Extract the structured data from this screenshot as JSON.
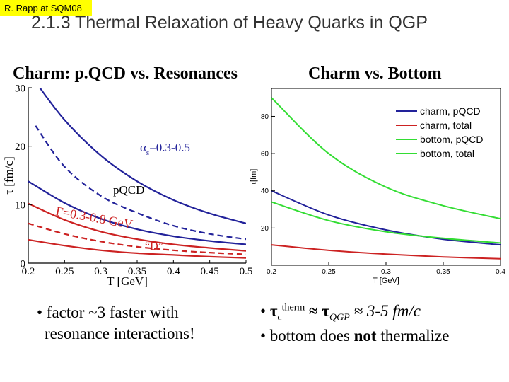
{
  "tag": "R. Rapp at SQM08",
  "slide_title": "2.1.3 Thermal Relaxation of Heavy Quarks in QGP",
  "left_panel": {
    "title": "Charm: p.QCD vs. Resonances",
    "annotations": {
      "alpha": "α",
      "alpha_sub": "s",
      "alpha_range": "=0.3-0.5",
      "pqcd": "pQCD",
      "gamma": "Γ=0.3-0.8 GeV",
      "d_label": "“D”"
    }
  },
  "right_panel": {
    "title": "Charm vs. Bottom"
  },
  "bullets": {
    "left_line1": "• factor ~3 faster with",
    "left_line2": "resonance interactions!",
    "right1_prefix": "• ",
    "right1_tau": "τ",
    "right1_sub": "c",
    "right1_sup": "therm",
    "right1_mid": " ≈ τ",
    "right1_qgp": "QGP",
    "right1_tail": " ≈ 3-5 fm/c",
    "right2_prefix": "• bottom does ",
    "right2_bold": "not",
    "right2_tail": " thermalize"
  },
  "chart_data": [
    {
      "type": "line",
      "xlabel": "T [GeV]",
      "ylabel": "τ [fm/c]",
      "xlim": [
        0.2,
        0.5
      ],
      "ylim": [
        0,
        30
      ],
      "xticks": [
        "0.2",
        "0.25",
        "0.3",
        "0.35",
        "0.4",
        "0.45",
        "0.5"
      ],
      "yticks": [
        "0",
        "10",
        "20",
        "30"
      ],
      "series": [
        {
          "color": "#22229a",
          "style": "solid",
          "x": [
            0.21,
            0.25,
            0.3,
            0.35,
            0.4,
            0.45,
            0.5
          ],
          "y": [
            31,
            24.5,
            18.4,
            14,
            10.8,
            8.5,
            6.8
          ]
        },
        {
          "color": "#22229a",
          "style": "dashed",
          "x": [
            0.21,
            0.25,
            0.3,
            0.35,
            0.4,
            0.45,
            0.5
          ],
          "y": [
            23.5,
            16.5,
            11.5,
            8.6,
            6.4,
            5.0,
            4.1
          ]
        },
        {
          "color": "#22229a",
          "style": "solid",
          "x": [
            0.2,
            0.25,
            0.3,
            0.35,
            0.4,
            0.45,
            0.5
          ],
          "y": [
            14,
            10.3,
            7.6,
            5.8,
            4.6,
            3.8,
            3.2
          ]
        },
        {
          "color": "#cc2222",
          "style": "solid",
          "x": [
            0.2,
            0.25,
            0.3,
            0.35,
            0.4,
            0.45,
            0.5
          ],
          "y": [
            10.2,
            7.4,
            5.4,
            4.1,
            3.2,
            2.6,
            2.1
          ]
        },
        {
          "color": "#cc2222",
          "style": "dashed",
          "x": [
            0.2,
            0.25,
            0.3,
            0.35,
            0.4,
            0.45,
            0.5
          ],
          "y": [
            6.8,
            5.0,
            3.7,
            2.8,
            2.2,
            1.8,
            1.5
          ]
        },
        {
          "color": "#cc2222",
          "style": "solid",
          "x": [
            0.2,
            0.25,
            0.3,
            0.35,
            0.4,
            0.45,
            0.5
          ],
          "y": [
            4.0,
            3.0,
            2.2,
            1.7,
            1.4,
            1.1,
            0.9
          ]
        }
      ]
    },
    {
      "type": "line",
      "xlabel": "T [GeV]",
      "ylabel": "τ[fm]",
      "xlim": [
        0.2,
        0.4
      ],
      "ylim": [
        0,
        95
      ],
      "xticks": [
        "0.2",
        "0.25",
        "0.3",
        "0.35",
        "0.4"
      ],
      "yticks": [
        "20",
        "40",
        "60",
        "80"
      ],
      "legend_position": "top-right",
      "series": [
        {
          "name": "charm, pQCD",
          "color": "#22229a",
          "x": [
            0.2,
            0.25,
            0.3,
            0.35,
            0.4
          ],
          "y": [
            40,
            27,
            19,
            14,
            11
          ]
        },
        {
          "name": "charm, total",
          "color": "#cc2222",
          "x": [
            0.2,
            0.25,
            0.3,
            0.35,
            0.4
          ],
          "y": [
            11,
            8,
            6,
            4.5,
            3.5
          ]
        },
        {
          "name": "bottom, pQCD",
          "color": "#33dd33",
          "x": [
            0.2,
            0.25,
            0.3,
            0.35,
            0.4
          ],
          "y": [
            90,
            60,
            42,
            32,
            25
          ]
        },
        {
          "name": "bottom, total",
          "color": "#33dd33",
          "x": [
            0.2,
            0.25,
            0.3,
            0.35,
            0.4
          ],
          "y": [
            34,
            24,
            18,
            14.5,
            12
          ]
        }
      ]
    }
  ]
}
